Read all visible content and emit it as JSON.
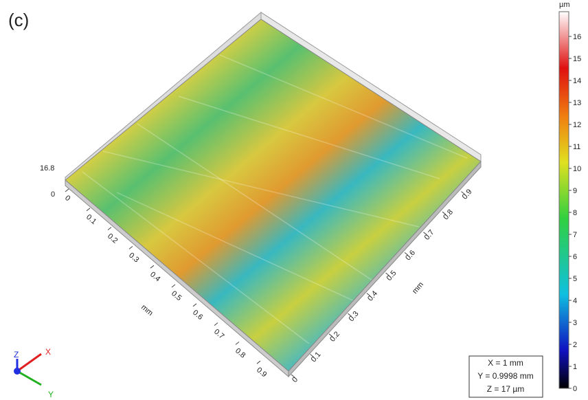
{
  "label": "(c)",
  "z_axis": {
    "top": "16.8",
    "bottom": "0"
  },
  "x_axis": {
    "label": "mm",
    "ticks": [
      0,
      0.1,
      0.2,
      0.3,
      0.4,
      0.5,
      0.6,
      0.7,
      0.8,
      0.9
    ]
  },
  "y_axis": {
    "label": "mm",
    "ticks": [
      0,
      0.1,
      0.2,
      0.3,
      0.4,
      0.5,
      0.6,
      0.7,
      0.8,
      0.9
    ]
  },
  "colorbar": {
    "unit": "µm",
    "ticks": [
      0,
      1,
      2,
      3,
      4,
      5,
      6,
      7,
      8,
      9,
      10,
      11,
      12,
      13,
      14,
      15,
      16
    ]
  },
  "orientation": {
    "x": "X",
    "y": "Y",
    "z": "Z"
  },
  "info": [
    "X = 1 mm",
    "Y = 0.9998 mm",
    "Z = 17 µm"
  ]
}
